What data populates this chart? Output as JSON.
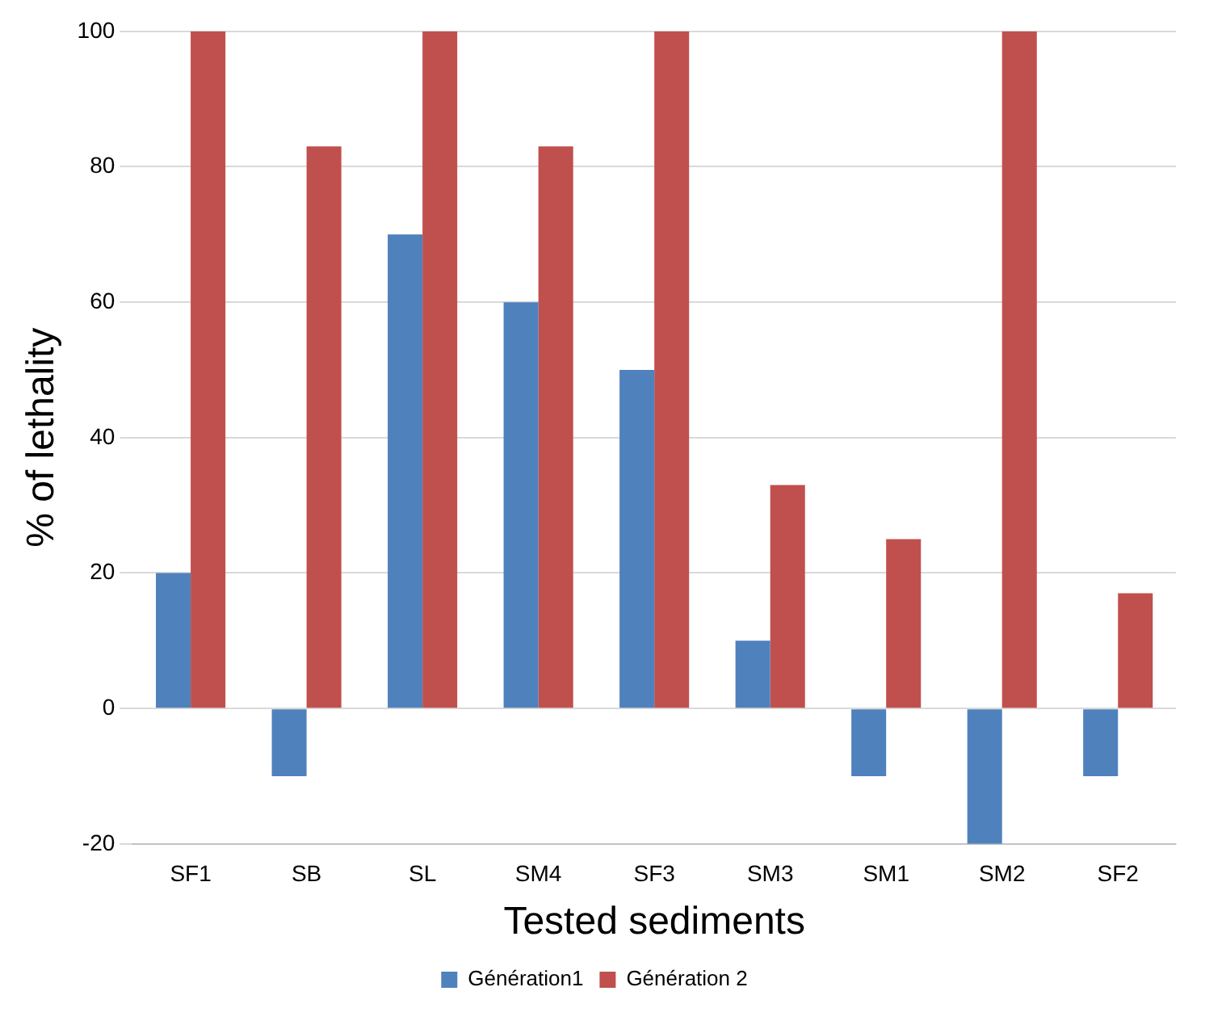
{
  "chart_data": {
    "type": "bar",
    "xlabel": "Tested sediments",
    "ylabel": "% of lethality",
    "categories": [
      "SF1",
      "SB",
      "SL",
      "SM4",
      "SF3",
      "SM3",
      "SM1",
      "SM2",
      "SF2"
    ],
    "series": [
      {
        "name": "Génération1",
        "color": "#4f81bd",
        "values": [
          20,
          -10,
          70,
          60,
          50,
          10,
          -10,
          -20,
          -10
        ]
      },
      {
        "name": "Génération 2",
        "color": "#c0504d",
        "values": [
          100,
          83,
          100,
          83,
          100,
          33,
          25,
          100,
          17
        ]
      }
    ],
    "ylim": [
      -20,
      100
    ],
    "yticks": [
      -20,
      0,
      20,
      40,
      60,
      80,
      100
    ],
    "grid": "y",
    "legend": "bottom"
  }
}
